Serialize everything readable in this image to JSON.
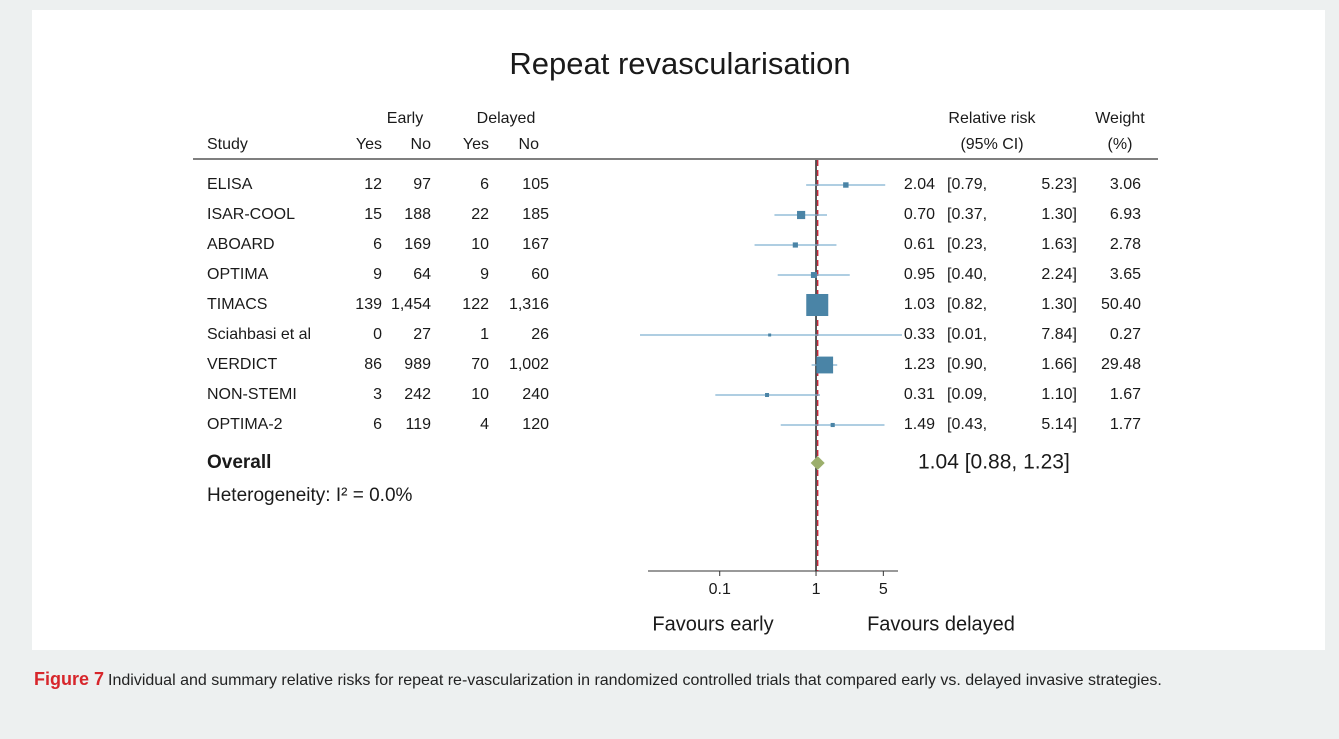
{
  "chart_data": {
    "type": "forest",
    "title": "Repeat revascularisation",
    "headers": {
      "study": "Study",
      "early": "Early",
      "delayed": "Delayed",
      "yes": "Yes",
      "no": "No",
      "rr": "Relative risk",
      "ci": "(95% CI)",
      "weight": "Weight",
      "weight_unit": "(%)"
    },
    "categories": [
      "ELISA",
      "ISAR-COOL",
      "ABOARD",
      "OPTIMA",
      "TIMACS",
      "Sciahbasi et al",
      "VERDICT",
      "NON-STEMI",
      "OPTIMA-2"
    ],
    "early_yes": [
      12,
      15,
      6,
      9,
      139,
      0,
      86,
      3,
      6
    ],
    "early_no": [
      97,
      188,
      169,
      64,
      "1,454",
      27,
      989,
      242,
      119
    ],
    "delayed_yes": [
      6,
      22,
      10,
      9,
      122,
      1,
      70,
      10,
      4
    ],
    "delayed_no": [
      105,
      185,
      167,
      60,
      "1,316",
      26,
      "1,002",
      240,
      120
    ],
    "values": [
      2.04,
      0.7,
      0.61,
      0.95,
      1.03,
      0.33,
      1.23,
      0.31,
      1.49
    ],
    "value_labels": [
      "2.04",
      "0.70",
      "0.61",
      "0.95",
      "1.03",
      "0.33",
      "1.23",
      "0.31",
      "1.49"
    ],
    "ci_low": [
      0.79,
      0.37,
      0.23,
      0.4,
      0.82,
      0.01,
      0.9,
      0.09,
      0.43
    ],
    "ci_low_labels": [
      "[0.79,",
      "[0.37,",
      "[0.23,",
      "[0.40,",
      "[0.82,",
      "[0.01,",
      "[0.90,",
      "[0.09,",
      "[0.43,"
    ],
    "ci_high": [
      5.23,
      1.3,
      1.63,
      2.24,
      1.3,
      7.84,
      1.66,
      1.1,
      5.14
    ],
    "ci_high_labels": [
      "5.23]",
      "1.30]",
      "1.63]",
      "2.24]",
      "1.30]",
      "7.84]",
      "1.66]",
      "1.10]",
      "5.14]"
    ],
    "weights": [
      3.06,
      6.93,
      2.78,
      3.65,
      50.4,
      0.27,
      29.48,
      1.67,
      1.77
    ],
    "weight_labels": [
      "3.06",
      "6.93",
      "2.78",
      "3.65",
      "50.40",
      "0.27",
      "29.48",
      "1.67",
      "1.77"
    ],
    "overall": {
      "name": "Overall",
      "value": 1.04,
      "ci_low": 0.88,
      "ci_high": 1.23,
      "label": "1.04 [0.88, 1.23]"
    },
    "heterogeneity": "Heterogeneity: I² = 0.0%",
    "xscale": "log",
    "xlim": [
      0.018,
      7.1
    ],
    "xticks": [
      0.1,
      1,
      5
    ],
    "reference": 1,
    "xlabels": [
      "Favours early",
      "Favours delayed"
    ],
    "marker_color": "#4a84a6",
    "ci_color": "#7fb1d0",
    "overall_color": "#9caf6c",
    "overall_line_color": "#c8283c"
  },
  "caption": {
    "label": "Figure 7",
    "text": "Individual and summary relative risks for repeat re-vascularization in randomized controlled trials that compared early vs. delayed invasive strategies."
  }
}
